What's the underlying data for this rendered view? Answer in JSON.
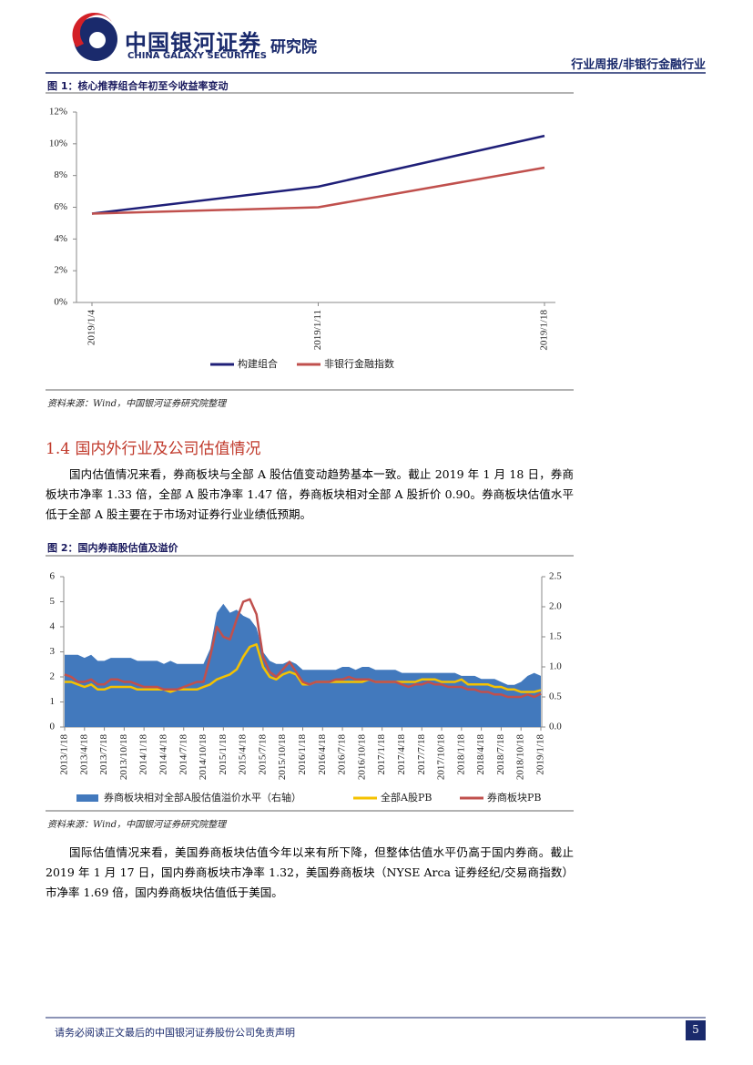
{
  "header": {
    "brand": "中国银河证券",
    "brand_en": "CHINA GALAXY SECURITIES",
    "institute": "研究院",
    "report_type": "行业周报/非银行金融行业"
  },
  "figure1": {
    "title": "图 1：核心推荐组合年初至今收益率变动",
    "source": "资料来源：Wind，中国银河证券研究院整理"
  },
  "section": {
    "heading": "1.4 国内外行业及公司估值情况",
    "paragraph": "国内估值情况来看，券商板块与全部 A 股估值变动趋势基本一致。截止 2019 年 1 月 18 日，券商板块市净率 1.33 倍，全部 A 股市净率 1.47 倍，券商板块相对全部 A 股折价 0.90。券商板块估值水平低于全部 A 股主要在于市场对证券行业业绩低预期。"
  },
  "figure2": {
    "title": "图 2：国内券商股估值及溢价",
    "source": "资料来源：Wind，中国银河证券研究院整理"
  },
  "paragraph2": "国际估值情况来看，美国券商板块估值今年以来有所下降，但整体估值水平仍高于国内券商。截止 2019 年 1 月 17 日，国内券商板块市净率 1.32，美国券商板块（NYSE Arca 证券经纪/交易商指数）市净率 1.69 倍，国内券商板块估值低于美国。",
  "footer": {
    "disclaimer": "请务必阅读正文最后的中国银河证券股份公司免责声明",
    "page": "5"
  },
  "chart_data": [
    {
      "type": "line",
      "categories": [
        "2019/1/4",
        "2019/1/11",
        "2019/1/18"
      ],
      "series": [
        {
          "name": "构建组合",
          "color": "#1f1f78",
          "kind": "line",
          "values": [
            5.6,
            7.3,
            10.5
          ]
        },
        {
          "name": "非银行金融指数",
          "color": "#c0504d",
          "kind": "line",
          "values": [
            5.6,
            6.0,
            8.5
          ]
        }
      ],
      "ylim": [
        0,
        12
      ],
      "yticks": [
        {
          "value": 0,
          "label": "0%"
        },
        {
          "value": 2,
          "label": "2%"
        },
        {
          "value": 4,
          "label": "4%"
        },
        {
          "value": 6,
          "label": "6%"
        },
        {
          "value": 8,
          "label": "8%"
        },
        {
          "value": 10,
          "label": "10%"
        },
        {
          "value": 12,
          "label": "12%"
        }
      ]
    },
    {
      "type": "combo",
      "categories": [
        "2013/1/18",
        null,
        null,
        "2013/4/18",
        null,
        null,
        "2013/7/18",
        null,
        null,
        "2013/10/18",
        null,
        null,
        "2014/1/18",
        null,
        null,
        "2014/4/18",
        null,
        null,
        "2014/7/18",
        null,
        null,
        "2014/10/18",
        null,
        null,
        "2015/1/18",
        null,
        null,
        "2015/4/18",
        null,
        null,
        "2015/7/18",
        null,
        null,
        "2015/10/18",
        null,
        null,
        "2016/1/18",
        null,
        null,
        "2016/4/18",
        null,
        null,
        "2016/7/18",
        null,
        null,
        "2016/10/18",
        null,
        null,
        "2017/1/18",
        null,
        null,
        "2017/4/18",
        null,
        null,
        "2017/7/18",
        null,
        null,
        "2017/10/18",
        null,
        null,
        "2018/1/18",
        null,
        null,
        "2018/4/18",
        null,
        null,
        "2018/7/18",
        null,
        null,
        "2018/10/18",
        null,
        null,
        "2019/1/18"
      ],
      "series": [
        {
          "name": "券商板块相对全部A股估值溢价水平（右轴）",
          "color": "#4279bd",
          "kind": "area",
          "axis": "y2",
          "values": [
            1.2,
            1.2,
            1.2,
            1.15,
            1.2,
            1.1,
            1.1,
            1.15,
            1.15,
            1.15,
            1.15,
            1.1,
            1.1,
            1.1,
            1.1,
            1.05,
            1.1,
            1.05,
            1.05,
            1.05,
            1.05,
            1.05,
            1.3,
            1.9,
            2.05,
            1.9,
            1.95,
            1.85,
            1.8,
            1.65,
            1.25,
            1.1,
            1.05,
            1.05,
            1.1,
            1.05,
            0.95,
            0.95,
            0.95,
            0.95,
            0.95,
            0.95,
            1.0,
            1.0,
            0.95,
            1.0,
            1.0,
            0.95,
            0.95,
            0.95,
            0.95,
            0.9,
            0.9,
            0.9,
            0.9,
            0.9,
            0.9,
            0.9,
            0.9,
            0.9,
            0.85,
            0.85,
            0.85,
            0.8,
            0.8,
            0.8,
            0.75,
            0.7,
            0.7,
            0.75,
            0.85,
            0.9,
            0.85
          ]
        },
        {
          "name": "全部A股PB",
          "color": "#f5c200",
          "kind": "line",
          "values": [
            1.8,
            1.8,
            1.7,
            1.6,
            1.7,
            1.5,
            1.5,
            1.6,
            1.6,
            1.6,
            1.6,
            1.5,
            1.5,
            1.5,
            1.5,
            1.5,
            1.4,
            1.5,
            1.5,
            1.5,
            1.5,
            1.6,
            1.7,
            1.9,
            2.0,
            2.1,
            2.3,
            2.8,
            3.2,
            3.3,
            2.4,
            2.0,
            1.9,
            2.1,
            2.2,
            2.1,
            1.7,
            1.7,
            1.8,
            1.8,
            1.8,
            1.8,
            1.8,
            1.8,
            1.8,
            1.8,
            1.9,
            1.8,
            1.8,
            1.8,
            1.8,
            1.8,
            1.8,
            1.8,
            1.9,
            1.9,
            1.9,
            1.8,
            1.8,
            1.8,
            1.9,
            1.7,
            1.7,
            1.7,
            1.7,
            1.6,
            1.6,
            1.5,
            1.5,
            1.4,
            1.4,
            1.4,
            1.47
          ]
        },
        {
          "name": "券商板块PB",
          "color": "#c0504d",
          "kind": "line",
          "values": [
            2.1,
            2.0,
            1.8,
            1.8,
            1.9,
            1.7,
            1.7,
            1.9,
            1.9,
            1.8,
            1.8,
            1.7,
            1.6,
            1.6,
            1.6,
            1.5,
            1.5,
            1.5,
            1.6,
            1.7,
            1.8,
            1.8,
            2.8,
            4.0,
            3.6,
            3.5,
            4.3,
            5.0,
            5.1,
            4.5,
            2.8,
            2.2,
            2.0,
            2.3,
            2.6,
            2.2,
            1.8,
            1.7,
            1.8,
            1.8,
            1.8,
            1.9,
            1.9,
            2.0,
            1.9,
            1.9,
            1.9,
            1.8,
            1.8,
            1.8,
            1.8,
            1.7,
            1.6,
            1.7,
            1.7,
            1.8,
            1.7,
            1.7,
            1.6,
            1.6,
            1.6,
            1.5,
            1.5,
            1.4,
            1.4,
            1.3,
            1.3,
            1.2,
            1.2,
            1.2,
            1.3,
            1.2,
            1.33
          ]
        }
      ],
      "ylim": [
        0,
        6
      ],
      "yticks": [
        0,
        1,
        2,
        3,
        4,
        5,
        6
      ],
      "y2lim": [
        0,
        2.5
      ],
      "y2ticks": [
        {
          "value": 0,
          "label": "0.0"
        },
        0.5,
        {
          "value": 1,
          "label": "1.0"
        },
        1.5,
        {
          "value": 2,
          "label": "2.0"
        },
        2.5
      ]
    }
  ]
}
